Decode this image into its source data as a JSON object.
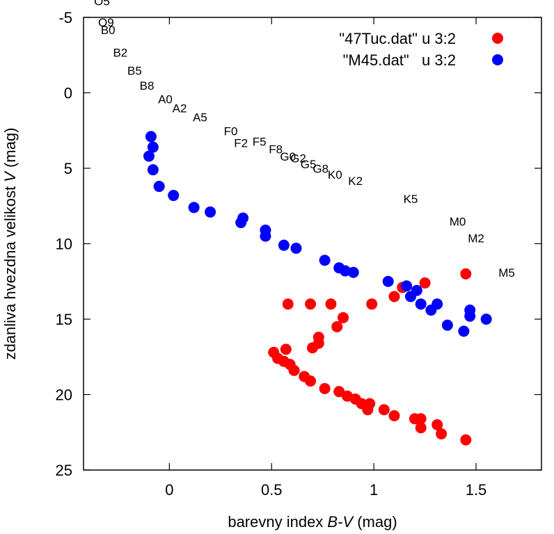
{
  "chart_data": {
    "type": "scatter",
    "xlabel": {
      "prefix": "barevny index ",
      "italic": "B-V",
      "suffix": " (mag)"
    },
    "ylabel": {
      "prefix": "zdanliva hvezdna velikost ",
      "italic": "V",
      "suffix": " (mag)"
    },
    "xlim": [
      -0.42,
      1.82
    ],
    "ylim": [
      -5,
      25
    ],
    "y_inverted": true,
    "x_ticks": [
      0,
      0.5,
      1,
      1.5
    ],
    "x_tick_labels": [
      "0",
      "0.5",
      "1",
      "1.5"
    ],
    "y_ticks": [
      -5,
      0,
      5,
      10,
      15,
      20,
      25
    ],
    "y_tick_labels": [
      "-5",
      "0",
      "5",
      "10",
      "15",
      "20",
      "25"
    ],
    "grid": false,
    "legend_position": "top-right",
    "series": [
      {
        "name": "\"47Tuc.dat\" u 3:2",
        "color": "#ff0000",
        "points": [
          [
            0.58,
            14.0
          ],
          [
            0.69,
            14.0
          ],
          [
            0.79,
            14.0
          ],
          [
            0.99,
            14.0
          ],
          [
            1.1,
            13.5
          ],
          [
            1.14,
            12.9
          ],
          [
            1.25,
            12.6
          ],
          [
            1.45,
            12.0
          ],
          [
            0.85,
            14.9
          ],
          [
            0.82,
            15.5
          ],
          [
            0.73,
            16.2
          ],
          [
            0.73,
            16.6
          ],
          [
            0.7,
            16.9
          ],
          [
            0.51,
            17.2
          ],
          [
            0.53,
            17.6
          ],
          [
            0.57,
            17.0
          ],
          [
            0.56,
            17.8
          ],
          [
            0.59,
            18.0
          ],
          [
            0.61,
            18.4
          ],
          [
            0.66,
            18.8
          ],
          [
            0.69,
            19.1
          ],
          [
            0.76,
            19.6
          ],
          [
            0.83,
            19.8
          ],
          [
            0.87,
            20.1
          ],
          [
            0.91,
            20.3
          ],
          [
            0.94,
            20.6
          ],
          [
            0.98,
            20.6
          ],
          [
            0.97,
            21.0
          ],
          [
            1.05,
            21.0
          ],
          [
            1.1,
            21.4
          ],
          [
            1.2,
            21.6
          ],
          [
            1.23,
            21.6
          ],
          [
            1.23,
            22.2
          ],
          [
            1.31,
            22.0
          ],
          [
            1.33,
            22.6
          ],
          [
            1.45,
            23.0
          ]
        ]
      },
      {
        "name": "\"M45.dat\"   u 3:2",
        "color": "#0000ff",
        "points": [
          [
            -0.09,
            2.9
          ],
          [
            -0.08,
            3.6
          ],
          [
            -0.1,
            4.2
          ],
          [
            -0.08,
            5.1
          ],
          [
            -0.05,
            6.2
          ],
          [
            0.02,
            6.8
          ],
          [
            0.12,
            7.6
          ],
          [
            0.2,
            7.9
          ],
          [
            0.36,
            8.3
          ],
          [
            0.35,
            8.6
          ],
          [
            0.47,
            9.1
          ],
          [
            0.47,
            9.5
          ],
          [
            0.56,
            10.1
          ],
          [
            0.62,
            10.3
          ],
          [
            0.76,
            11.1
          ],
          [
            0.83,
            11.6
          ],
          [
            0.86,
            11.8
          ],
          [
            0.9,
            11.9
          ],
          [
            1.07,
            12.5
          ],
          [
            1.16,
            12.8
          ],
          [
            1.21,
            13.1
          ],
          [
            1.18,
            13.5
          ],
          [
            1.23,
            14.0
          ],
          [
            1.31,
            14.0
          ],
          [
            1.28,
            14.4
          ],
          [
            1.47,
            14.4
          ],
          [
            1.47,
            14.8
          ],
          [
            1.55,
            15.0
          ],
          [
            1.36,
            15.4
          ],
          [
            1.44,
            15.8
          ]
        ]
      }
    ],
    "annotations": [
      {
        "text": "O5",
        "x": -0.33,
        "y": -5.8
      },
      {
        "text": "O9",
        "x": -0.31,
        "y": -4.4
      },
      {
        "text": "B0",
        "x": -0.3,
        "y": -3.9
      },
      {
        "text": "B2",
        "x": -0.24,
        "y": -2.4
      },
      {
        "text": "B5",
        "x": -0.17,
        "y": -1.2
      },
      {
        "text": "B8",
        "x": -0.11,
        "y": -0.2
      },
      {
        "text": "A0",
        "x": -0.02,
        "y": 0.7
      },
      {
        "text": "A2",
        "x": 0.05,
        "y": 1.3
      },
      {
        "text": "A5",
        "x": 0.15,
        "y": 1.9
      },
      {
        "text": "F0",
        "x": 0.3,
        "y": 2.8
      },
      {
        "text": "F2",
        "x": 0.35,
        "y": 3.6
      },
      {
        "text": "F5",
        "x": 0.44,
        "y": 3.5
      },
      {
        "text": "F8",
        "x": 0.52,
        "y": 4.0
      },
      {
        "text": "G0",
        "x": 0.58,
        "y": 4.5
      },
      {
        "text": "G2",
        "x": 0.63,
        "y": 4.6
      },
      {
        "text": "G5",
        "x": 0.68,
        "y": 5.0
      },
      {
        "text": "G8",
        "x": 0.74,
        "y": 5.3
      },
      {
        "text": "K0",
        "x": 0.81,
        "y": 5.7
      },
      {
        "text": "K2",
        "x": 0.91,
        "y": 6.1
      },
      {
        "text": "K5",
        "x": 1.18,
        "y": 7.3
      },
      {
        "text": "M0",
        "x": 1.41,
        "y": 8.8
      },
      {
        "text": "M2",
        "x": 1.5,
        "y": 9.9
      },
      {
        "text": "M5",
        "x": 1.65,
        "y": 12.2
      }
    ]
  }
}
